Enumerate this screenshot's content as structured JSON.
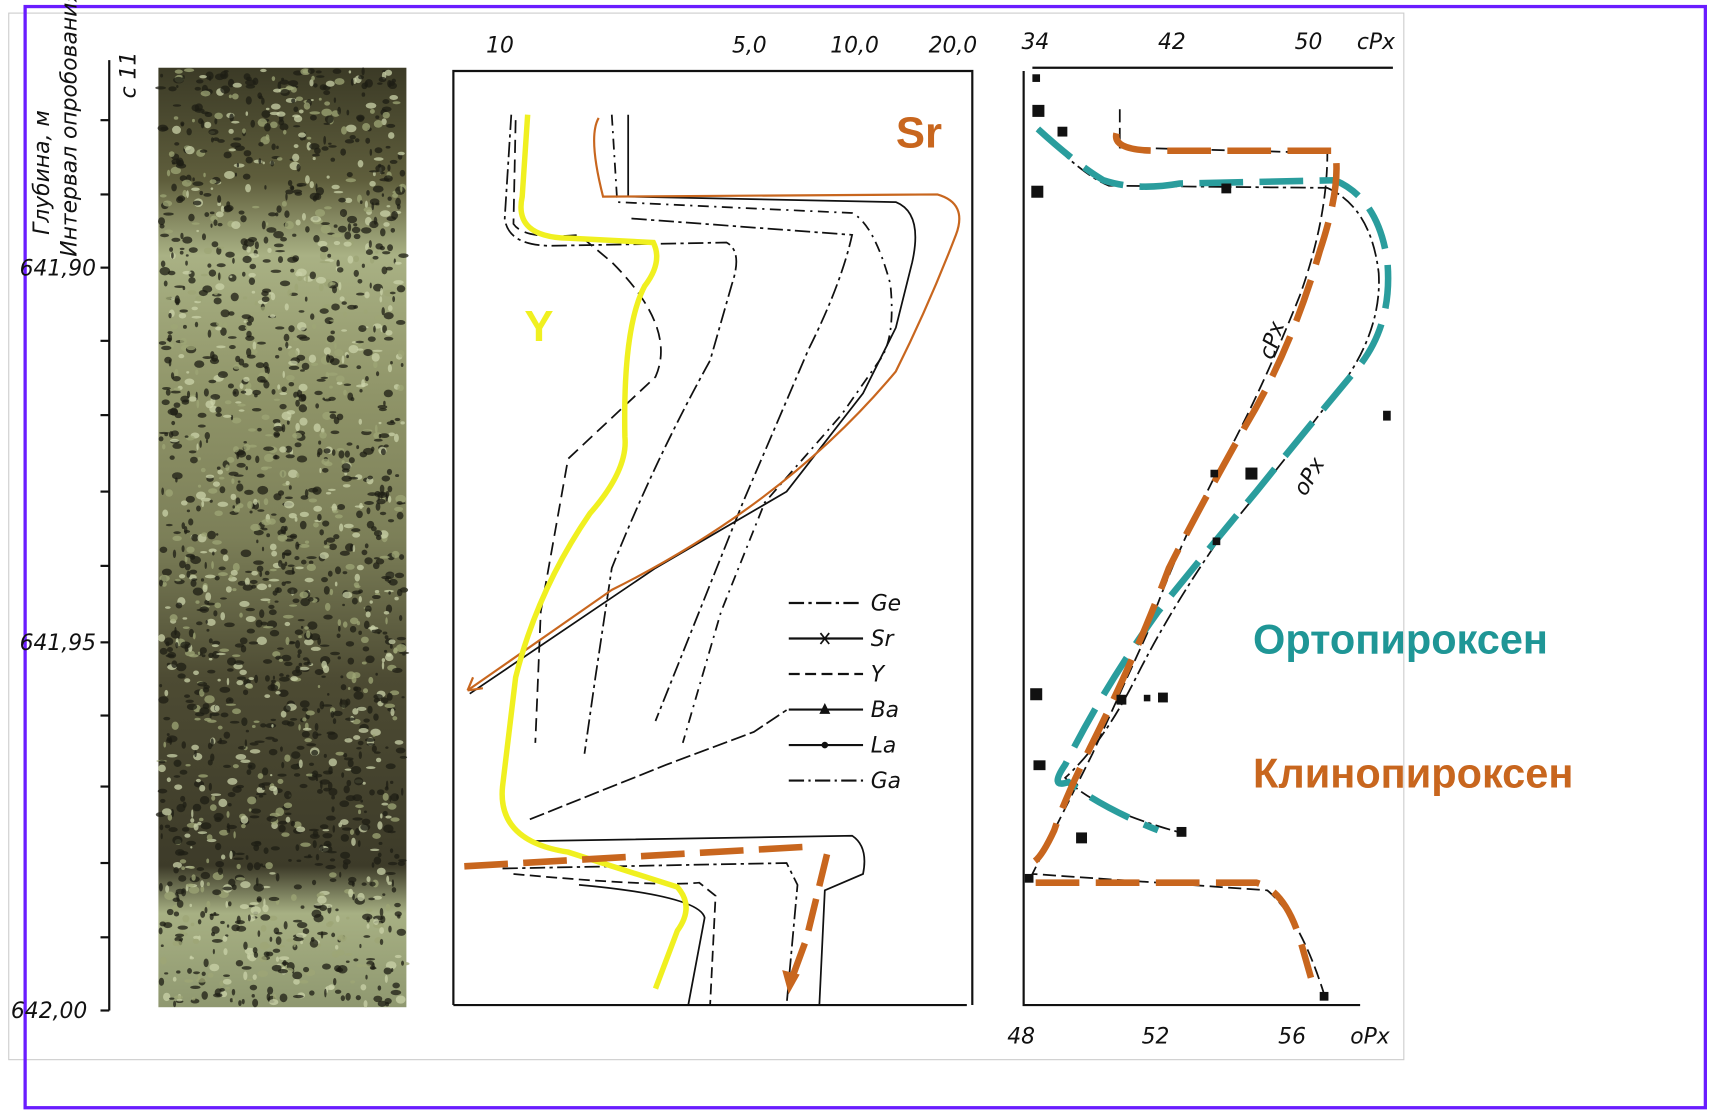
{
  "core": {
    "label": "с 11",
    "axis_title": "Глубина, м",
    "axis_subtitle": "Интервал опробования",
    "depth_labels": [
      "641,90",
      "641,95",
      "642,00"
    ]
  },
  "elements_chart": {
    "top_labels": [
      "10",
      "5,0",
      "10,0",
      "20,0"
    ],
    "legend": [
      "Ge",
      "Sr",
      "Y",
      "Ba",
      "La",
      "Ga"
    ],
    "annotations": [
      "Sr",
      "Y"
    ]
  },
  "pyroxene_chart": {
    "top_labels": [
      "34",
      "42",
      "50",
      "cPx"
    ],
    "bottom_labels": [
      "48",
      "52",
      "56",
      "oPx"
    ],
    "curve_labels": [
      "cPx",
      "oPx"
    ]
  },
  "captions": [
    "Ортопироксен",
    "Клинопироксен"
  ]
}
